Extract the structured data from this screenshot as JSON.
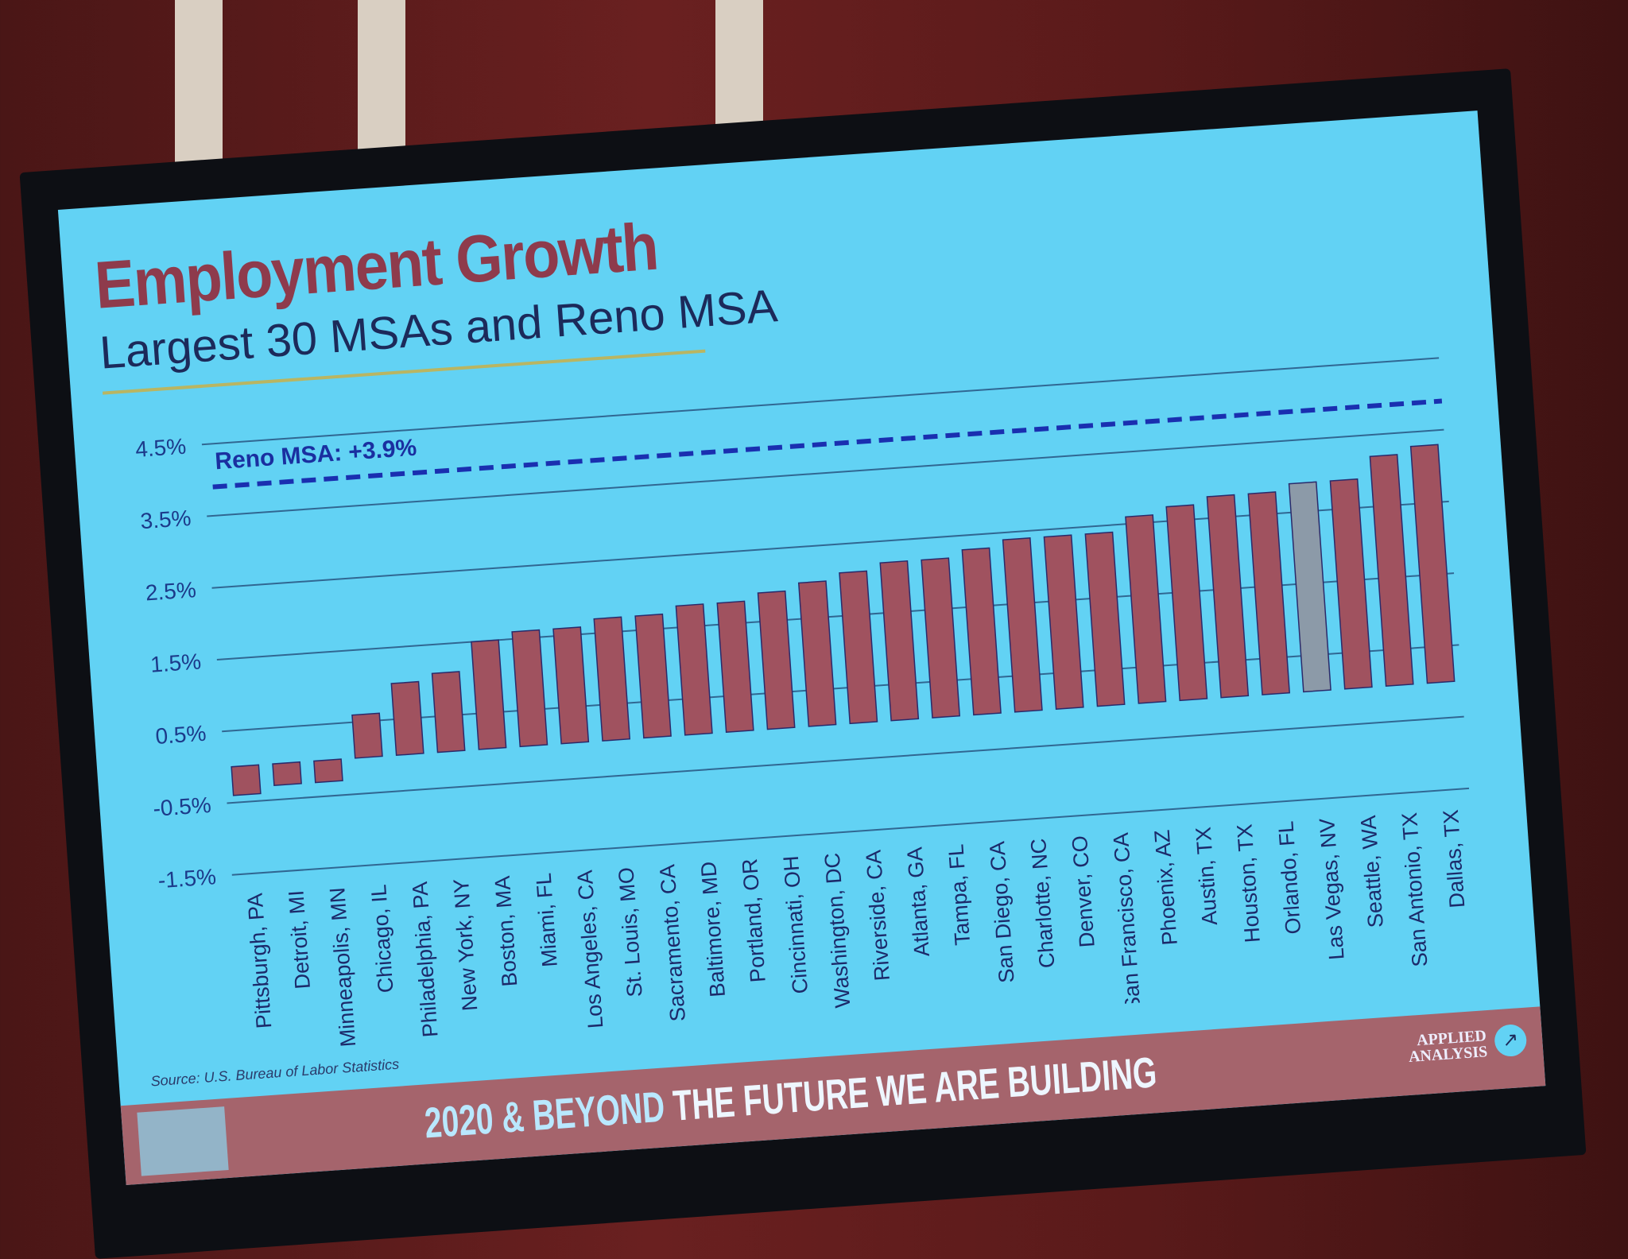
{
  "slide": {
    "title": "Employment Growth",
    "subtitle": "Largest 30 MSAs and Reno MSA",
    "source": "Source: U.S. Bureau of Labor Statistics",
    "footer_bold": "2020 & BEYOND",
    "footer_rest": " THE FUTURE WE ARE BUILDING",
    "brand": "APPLIED ANALYSIS",
    "brand_icon": "pen-nib-icon"
  },
  "colors": {
    "background": "#62d2f4",
    "bar": "#a0525f",
    "highlight_bar": "#8c9aa8",
    "reference_line": "#1a2fb0",
    "title": "#8e3b4c",
    "footer": "#a5646c"
  },
  "chart_data": {
    "type": "bar",
    "title": "Employment Growth",
    "subtitle": "Largest 30 MSAs and Reno MSA",
    "categories": [
      "Pittsburgh, PA",
      "Detroit, MI",
      "Minneapolis, MN",
      "Chicago, IL",
      "Philadelphia, PA",
      "New York, NY",
      "Boston, MA",
      "Miami, FL",
      "Los Angeles, CA",
      "St. Louis, MO",
      "Sacramento, CA",
      "Baltimore, MD",
      "Portland, OR",
      "Cincinnati, OH",
      "Washington, DC",
      "Riverside, CA",
      "Atlanta, GA",
      "Tampa, FL",
      "San Diego, CA",
      "Charlotte, NC",
      "Denver, CO",
      "San Francisco, CA",
      "Phoenix, AZ",
      "Austin, TX",
      "Houston, TX",
      "Orlando, FL",
      "Las Vegas, NV",
      "Seattle, WA",
      "San Antonio, TX",
      "Dallas, TX"
    ],
    "values": [
      -0.4,
      -0.3,
      -0.3,
      0.6,
      1.0,
      1.1,
      1.5,
      1.6,
      1.6,
      1.7,
      1.7,
      1.8,
      1.8,
      1.9,
      2.0,
      2.1,
      2.2,
      2.2,
      2.3,
      2.4,
      2.4,
      2.4,
      2.6,
      2.7,
      2.8,
      2.8,
      2.9,
      2.9,
      3.2,
      3.3
    ],
    "highlight": "Las Vegas, NV",
    "y_ticks": [
      4.5,
      3.5,
      2.5,
      1.5,
      0.5,
      -0.5,
      -1.5
    ],
    "y_tick_labels": [
      "4.5%",
      "3.5%",
      "2.5%",
      "1.5%",
      "0.5%",
      "-0.5%",
      "-1.5%"
    ],
    "ylim": [
      -1.5,
      4.8
    ],
    "grid": true,
    "reference_line": {
      "label": "Reno MSA: +3.9%",
      "value": 3.9,
      "style": "dashed"
    },
    "xlabel": "",
    "ylabel": ""
  }
}
